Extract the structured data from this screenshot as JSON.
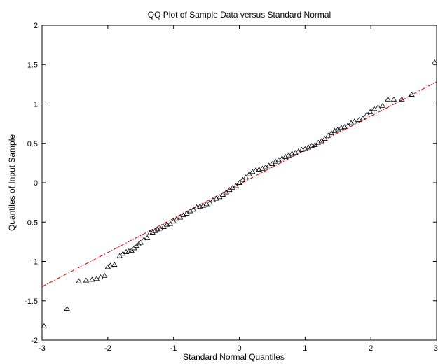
{
  "chart_data": {
    "type": "scatter",
    "title": "QQ Plot of Sample Data versus Standard Normal",
    "xlabel": "Standard Normal Quantiles",
    "ylabel": "Quantiles of Input Sample",
    "xlim": [
      -3,
      3
    ],
    "ylim": [
      -2,
      2
    ],
    "xticks": [
      -3,
      -2,
      -1,
      0,
      1,
      2,
      3
    ],
    "yticks": [
      -2,
      -1.5,
      -1,
      -0.5,
      0,
      0.5,
      1,
      1.5,
      2
    ],
    "xtick_labels": [
      "-3",
      "-2",
      "-1",
      "0",
      "1",
      "2",
      "3"
    ],
    "ytick_labels": [
      "-2",
      "-1.5",
      "-1",
      "-0.5",
      "0",
      "0.5",
      "1",
      "1.5",
      "2"
    ],
    "grid": false,
    "marker": "triangle",
    "marker_color": "#000000",
    "reference_line": {
      "style": "dash-dot",
      "color": "#cc0000",
      "points": [
        [
          -3,
          -1.32
        ],
        [
          3,
          1.28
        ]
      ]
    },
    "series": [
      {
        "points": [
          [
            -2.97,
            -1.82
          ],
          [
            -2.62,
            -1.6
          ],
          [
            -2.44,
            -1.25
          ],
          [
            -2.33,
            -1.24
          ],
          [
            -2.24,
            -1.23
          ],
          [
            -2.17,
            -1.22
          ],
          [
            -2.11,
            -1.2
          ],
          [
            -2.05,
            -1.18
          ],
          [
            -2.0,
            -1.07
          ],
          [
            -1.96,
            -1.05
          ],
          [
            -1.9,
            -1.04
          ],
          [
            -1.82,
            -0.93
          ],
          [
            -1.77,
            -0.9
          ],
          [
            -1.72,
            -0.88
          ],
          [
            -1.68,
            -0.87
          ],
          [
            -1.64,
            -0.86
          ],
          [
            -1.6,
            -0.83
          ],
          [
            -1.56,
            -0.8
          ],
          [
            -1.53,
            -0.78
          ],
          [
            -1.5,
            -0.76
          ],
          [
            -1.45,
            -0.72
          ],
          [
            -1.4,
            -0.7
          ],
          [
            -1.36,
            -0.64
          ],
          [
            -1.32,
            -0.63
          ],
          [
            -1.28,
            -0.61
          ],
          [
            -1.24,
            -0.59
          ],
          [
            -1.2,
            -0.58
          ],
          [
            -1.15,
            -0.56
          ],
          [
            -1.1,
            -0.53
          ],
          [
            -1.05,
            -0.52
          ],
          [
            -1.0,
            -0.49
          ],
          [
            -0.95,
            -0.46
          ],
          [
            -0.9,
            -0.44
          ],
          [
            -0.85,
            -0.41
          ],
          [
            -0.8,
            -0.39
          ],
          [
            -0.75,
            -0.36
          ],
          [
            -0.7,
            -0.34
          ],
          [
            -0.65,
            -0.31
          ],
          [
            -0.6,
            -0.3
          ],
          [
            -0.55,
            -0.29
          ],
          [
            -0.5,
            -0.27
          ],
          [
            -0.45,
            -0.25
          ],
          [
            -0.4,
            -0.22
          ],
          [
            -0.35,
            -0.2
          ],
          [
            -0.3,
            -0.18
          ],
          [
            -0.25,
            -0.15
          ],
          [
            -0.2,
            -0.12
          ],
          [
            -0.15,
            -0.09
          ],
          [
            -0.1,
            -0.06
          ],
          [
            -0.05,
            -0.04
          ],
          [
            0.0,
            0.0
          ],
          [
            0.05,
            0.04
          ],
          [
            0.1,
            0.07
          ],
          [
            0.15,
            0.11
          ],
          [
            0.2,
            0.14
          ],
          [
            0.25,
            0.16
          ],
          [
            0.3,
            0.17
          ],
          [
            0.35,
            0.18
          ],
          [
            0.4,
            0.2
          ],
          [
            0.45,
            0.22
          ],
          [
            0.5,
            0.24
          ],
          [
            0.55,
            0.27
          ],
          [
            0.6,
            0.29
          ],
          [
            0.65,
            0.31
          ],
          [
            0.7,
            0.33
          ],
          [
            0.75,
            0.35
          ],
          [
            0.8,
            0.37
          ],
          [
            0.85,
            0.38
          ],
          [
            0.9,
            0.4
          ],
          [
            0.95,
            0.42
          ],
          [
            1.0,
            0.43
          ],
          [
            1.05,
            0.45
          ],
          [
            1.1,
            0.47
          ],
          [
            1.15,
            0.48
          ],
          [
            1.2,
            0.51
          ],
          [
            1.25,
            0.53
          ],
          [
            1.3,
            0.56
          ],
          [
            1.35,
            0.6
          ],
          [
            1.4,
            0.63
          ],
          [
            1.45,
            0.66
          ],
          [
            1.5,
            0.68
          ],
          [
            1.55,
            0.7
          ],
          [
            1.6,
            0.71
          ],
          [
            1.65,
            0.73
          ],
          [
            1.7,
            0.76
          ],
          [
            1.75,
            0.78
          ],
          [
            1.82,
            0.8
          ],
          [
            1.88,
            0.82
          ],
          [
            1.94,
            0.87
          ],
          [
            1.99,
            0.9
          ],
          [
            2.05,
            0.94
          ],
          [
            2.11,
            0.96
          ],
          [
            2.18,
            0.98
          ],
          [
            2.26,
            1.06
          ],
          [
            2.35,
            1.06
          ],
          [
            2.47,
            1.06
          ],
          [
            2.62,
            1.12
          ],
          [
            2.97,
            1.53
          ]
        ]
      }
    ]
  }
}
